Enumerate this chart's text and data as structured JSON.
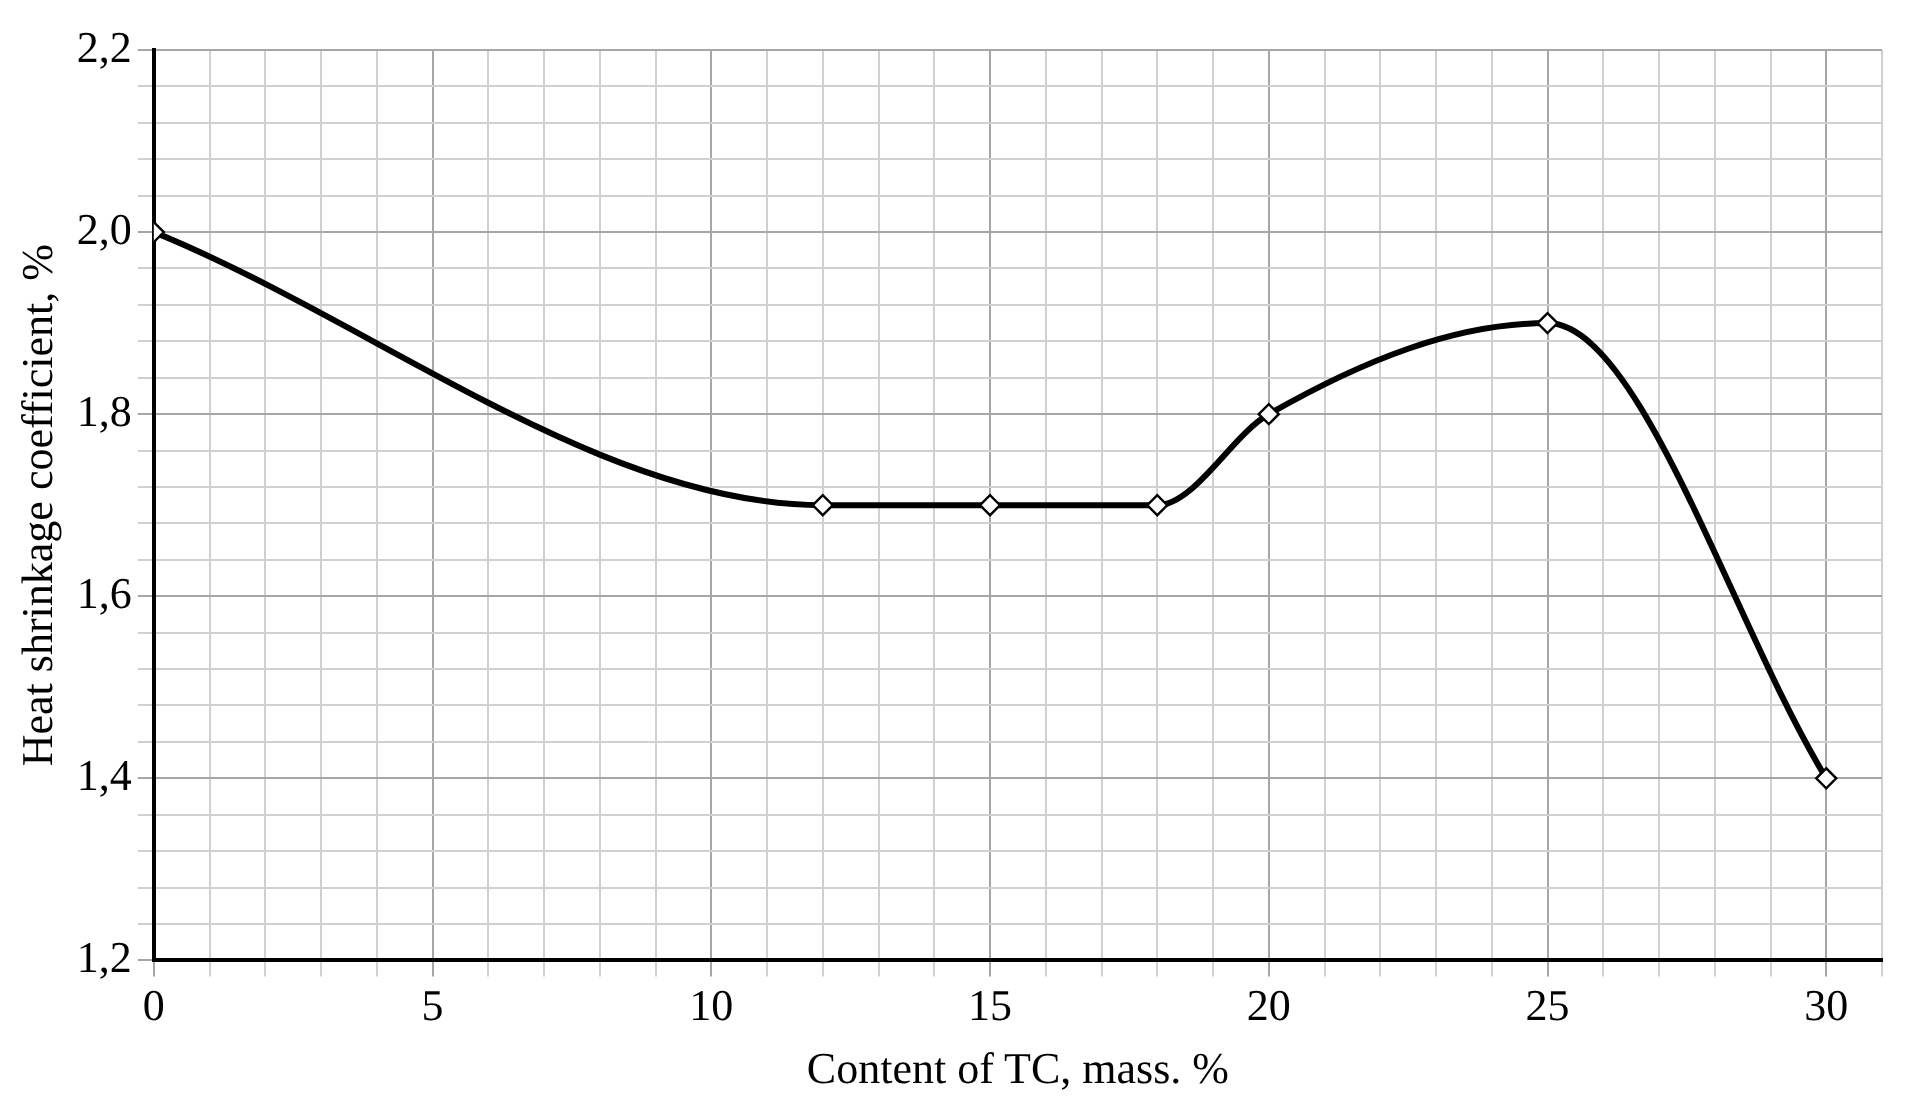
{
  "chart_data": {
    "type": "line",
    "xlabel": "Content of TC, mass. %",
    "ylabel": "Heat shrinkage coefficient, %",
    "x": [
      0,
      12,
      15,
      18,
      20,
      25,
      30
    ],
    "series": [
      {
        "color": "#000000",
        "values": [
          2.0,
          1.7,
          1.7,
          1.7,
          1.8,
          1.9,
          1.4
        ]
      }
    ],
    "xlim": [
      0,
      31
    ],
    "xticks": [
      0,
      {
        "value": 1,
        "label": null
      },
      {
        "value": 2,
        "label": null
      },
      {
        "value": 3,
        "label": null
      },
      {
        "value": 4,
        "label": null
      },
      5,
      {
        "value": 6,
        "label": null
      },
      {
        "value": 7,
        "label": null
      },
      {
        "value": 8,
        "label": null
      },
      {
        "value": 9,
        "label": null
      },
      10,
      {
        "value": 11,
        "label": null
      },
      {
        "value": 12,
        "label": null
      },
      {
        "value": 13,
        "label": null
      },
      {
        "value": 14,
        "label": null
      },
      15,
      {
        "value": 16,
        "label": null
      },
      {
        "value": 17,
        "label": null
      },
      {
        "value": 18,
        "label": null
      },
      {
        "value": 19,
        "label": null
      },
      20,
      {
        "value": 21,
        "label": null
      },
      {
        "value": 22,
        "label": null
      },
      {
        "value": 23,
        "label": null
      },
      {
        "value": 24,
        "label": null
      },
      25,
      {
        "value": 26,
        "label": null
      },
      {
        "value": 27,
        "label": null
      },
      {
        "value": 28,
        "label": null
      },
      {
        "value": 29,
        "label": null
      },
      30,
      {
        "value": 31,
        "label": null
      }
    ],
    "ylim": [
      1.2,
      2.2
    ],
    "yticks": [
      {
        "value": 1.2,
        "label": "1,2"
      },
      {
        "value": 1.24,
        "label": null
      },
      {
        "value": 1.28,
        "label": null
      },
      {
        "value": 1.32,
        "label": null
      },
      {
        "value": 1.36,
        "label": null
      },
      {
        "value": 1.4,
        "label": "1,4"
      },
      {
        "value": 1.44,
        "label": null
      },
      {
        "value": 1.48,
        "label": null
      },
      {
        "value": 1.52,
        "label": null
      },
      {
        "value": 1.56,
        "label": null
      },
      {
        "value": 1.6,
        "label": "1,6"
      },
      {
        "value": 1.64,
        "label": null
      },
      {
        "value": 1.68,
        "label": null
      },
      {
        "value": 1.72,
        "label": null
      },
      {
        "value": 1.76,
        "label": null
      },
      {
        "value": 1.8,
        "label": "1,8"
      },
      {
        "value": 1.84,
        "label": null
      },
      {
        "value": 1.88,
        "label": null
      },
      {
        "value": 1.92,
        "label": null
      },
      {
        "value": 1.96,
        "label": null
      },
      {
        "value": 2.0,
        "label": "2,0"
      },
      {
        "value": 2.04,
        "label": null
      },
      {
        "value": 2.08,
        "label": null
      },
      {
        "value": 2.12,
        "label": null
      },
      {
        "value": 2.16,
        "label": null
      },
      {
        "value": 2.2,
        "label": "2,2"
      }
    ],
    "grid": true,
    "marker": "diamond",
    "line_style": "solid",
    "legend": false
  }
}
